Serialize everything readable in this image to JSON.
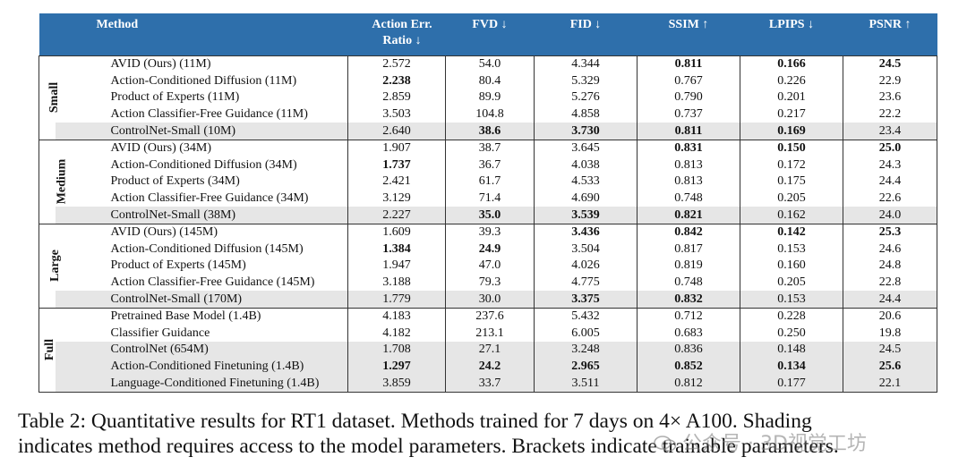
{
  "header": {
    "method": "Method",
    "action_err_line1": "Action Err.",
    "action_err_line2": "Ratio ↓",
    "fvd": "FVD ↓",
    "fid": "FID ↓",
    "ssim": "SSIM ↑",
    "lpips": "LPIPS ↓",
    "psnr": "PSNR ↑"
  },
  "groups": [
    {
      "label": "Small",
      "rows": [
        {
          "method": "AVID (Ours) (11M)",
          "cells": [
            "2.572",
            "54.0",
            "4.344",
            "0.811",
            "0.166",
            "24.5"
          ],
          "bold": [
            false,
            false,
            false,
            true,
            true,
            true
          ],
          "shaded": false
        },
        {
          "method": "Action-Conditioned Diffusion (11M)",
          "cells": [
            "2.238",
            "80.4",
            "5.329",
            "0.767",
            "0.226",
            "22.9"
          ],
          "bold": [
            true,
            false,
            false,
            false,
            false,
            false
          ],
          "shaded": false
        },
        {
          "method": "Product of Experts (11M)",
          "cells": [
            "2.859",
            "89.9",
            "5.276",
            "0.790",
            "0.201",
            "23.6"
          ],
          "bold": [
            false,
            false,
            false,
            false,
            false,
            false
          ],
          "shaded": false
        },
        {
          "method": "Action Classifier-Free Guidance (11M)",
          "cells": [
            "3.503",
            "104.8",
            "4.858",
            "0.737",
            "0.217",
            "22.2"
          ],
          "bold": [
            false,
            false,
            false,
            false,
            false,
            false
          ],
          "shaded": false
        },
        {
          "method": "ControlNet-Small (10M)",
          "cells": [
            "2.640",
            "38.6",
            "3.730",
            "0.811",
            "0.169",
            "23.4"
          ],
          "bold": [
            false,
            true,
            true,
            true,
            true,
            false
          ],
          "shaded": true
        }
      ]
    },
    {
      "label": "Medium",
      "rows": [
        {
          "method": "AVID (Ours) (34M)",
          "cells": [
            "1.907",
            "38.7",
            "3.645",
            "0.831",
            "0.150",
            "25.0"
          ],
          "bold": [
            false,
            false,
            false,
            true,
            true,
            true
          ],
          "shaded": false
        },
        {
          "method": "Action-Conditioned Diffusion (34M)",
          "cells": [
            "1.737",
            "36.7",
            "4.038",
            "0.813",
            "0.172",
            "24.3"
          ],
          "bold": [
            true,
            false,
            false,
            false,
            false,
            false
          ],
          "shaded": false
        },
        {
          "method": "Product of Experts (34M)",
          "cells": [
            "2.421",
            "61.7",
            "4.533",
            "0.813",
            "0.175",
            "24.4"
          ],
          "bold": [
            false,
            false,
            false,
            false,
            false,
            false
          ],
          "shaded": false
        },
        {
          "method": "Action Classifier-Free Guidance (34M)",
          "cells": [
            "3.129",
            "71.4",
            "4.690",
            "0.748",
            "0.205",
            "22.6"
          ],
          "bold": [
            false,
            false,
            false,
            false,
            false,
            false
          ],
          "shaded": false
        },
        {
          "method": "ControlNet-Small (38M)",
          "cells": [
            "2.227",
            "35.0",
            "3.539",
            "0.821",
            "0.162",
            "24.0"
          ],
          "bold": [
            false,
            true,
            true,
            true,
            false,
            false
          ],
          "shaded": true
        }
      ]
    },
    {
      "label": "Large",
      "rows": [
        {
          "method": "AVID (Ours) (145M)",
          "cells": [
            "1.609",
            "39.3",
            "3.436",
            "0.842",
            "0.142",
            "25.3"
          ],
          "bold": [
            false,
            false,
            true,
            true,
            true,
            true
          ],
          "shaded": false
        },
        {
          "method": "Action-Conditioned Diffusion (145M)",
          "cells": [
            "1.384",
            "24.9",
            "3.504",
            "0.817",
            "0.153",
            "24.6"
          ],
          "bold": [
            true,
            true,
            false,
            false,
            false,
            false
          ],
          "shaded": false
        },
        {
          "method": "Product of Experts (145M)",
          "cells": [
            "1.947",
            "47.0",
            "4.026",
            "0.819",
            "0.160",
            "24.8"
          ],
          "bold": [
            false,
            false,
            false,
            false,
            false,
            false
          ],
          "shaded": false
        },
        {
          "method": "Action Classifier-Free Guidance (145M)",
          "cells": [
            "3.188",
            "79.3",
            "4.775",
            "0.748",
            "0.205",
            "22.8"
          ],
          "bold": [
            false,
            false,
            false,
            false,
            false,
            false
          ],
          "shaded": false
        },
        {
          "method": "ControlNet-Small (170M)",
          "cells": [
            "1.779",
            "30.0",
            "3.375",
            "0.832",
            "0.153",
            "24.4"
          ],
          "bold": [
            false,
            false,
            true,
            true,
            false,
            false
          ],
          "shaded": true
        }
      ]
    },
    {
      "label": "Full",
      "rows": [
        {
          "method": "Pretrained Base Model (1.4B)",
          "cells": [
            "4.183",
            "237.6",
            "5.432",
            "0.712",
            "0.228",
            "20.6"
          ],
          "bold": [
            false,
            false,
            false,
            false,
            false,
            false
          ],
          "shaded": false
        },
        {
          "method": "Classifier Guidance",
          "cells": [
            "4.182",
            "213.1",
            "6.005",
            "0.683",
            "0.250",
            "19.8"
          ],
          "bold": [
            false,
            false,
            false,
            false,
            false,
            false
          ],
          "shaded": false
        },
        {
          "method": "ControlNet (654M)",
          "cells": [
            "1.708",
            "27.1",
            "3.248",
            "0.836",
            "0.148",
            "24.5"
          ],
          "bold": [
            false,
            false,
            false,
            false,
            false,
            false
          ],
          "shaded": true
        },
        {
          "method": "Action-Conditioned Finetuning (1.4B)",
          "cells": [
            "1.297",
            "24.2",
            "2.965",
            "0.852",
            "0.134",
            "25.6"
          ],
          "bold": [
            true,
            true,
            true,
            true,
            true,
            true
          ],
          "shaded": true
        },
        {
          "method": "Language-Conditioned Finetuning (1.4B)",
          "cells": [
            "3.859",
            "33.7",
            "3.511",
            "0.812",
            "0.177",
            "22.1"
          ],
          "bold": [
            false,
            false,
            false,
            false,
            false,
            false
          ],
          "shaded": true
        }
      ]
    }
  ],
  "caption": {
    "line1": "Table 2: Quantitative results for RT1 dataset. Methods trained for 7 days on 4× A100. Shading",
    "line2": "indicates method requires access to the model parameters. Brackets indicate trainable parameters."
  },
  "watermark": "公众号 · 3D视觉工坊",
  "colors": {
    "header_bg": "#2e6fab",
    "shade": "#e6e6e6"
  }
}
